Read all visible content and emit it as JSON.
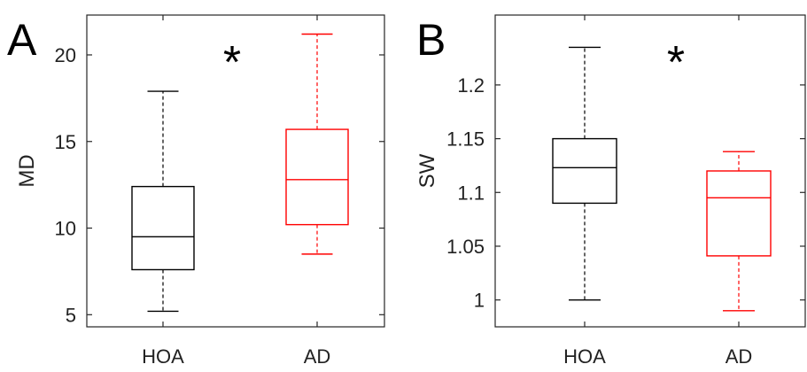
{
  "chart_data": [
    {
      "type": "box",
      "panel_label": "A",
      "xlabel": "",
      "ylabel": "MD",
      "ylim": [
        4.3,
        22.3
      ],
      "yticks": [
        5,
        10,
        15,
        20
      ],
      "ytick_labels": [
        "5",
        "10",
        "15",
        "20"
      ],
      "categories": [
        "HOA",
        "AD"
      ],
      "significance": "*",
      "series": [
        {
          "category": "HOA",
          "color": "#000000",
          "whisker_low": 5.2,
          "q1": 7.6,
          "median": 9.5,
          "q3": 12.4,
          "whisker_high": 17.9
        },
        {
          "category": "AD",
          "color": "#ff0000",
          "whisker_low": 8.5,
          "q1": 10.2,
          "median": 12.8,
          "q3": 15.7,
          "whisker_high": 21.2
        }
      ]
    },
    {
      "type": "box",
      "panel_label": "B",
      "xlabel": "",
      "ylabel": "SW",
      "ylim": [
        0.975,
        1.265
      ],
      "yticks": [
        1.0,
        1.05,
        1.1,
        1.15,
        1.2
      ],
      "ytick_labels": [
        "1",
        "1.05",
        "1.1",
        "1.15",
        "1.2"
      ],
      "categories": [
        "HOA",
        "AD"
      ],
      "significance": "*",
      "series": [
        {
          "category": "HOA",
          "color": "#000000",
          "whisker_low": 1.0,
          "q1": 1.09,
          "median": 1.123,
          "q3": 1.15,
          "whisker_high": 1.235
        },
        {
          "category": "AD",
          "color": "#ff0000",
          "whisker_low": 0.99,
          "q1": 1.041,
          "median": 1.095,
          "q3": 1.12,
          "whisker_high": 1.138
        }
      ]
    }
  ]
}
